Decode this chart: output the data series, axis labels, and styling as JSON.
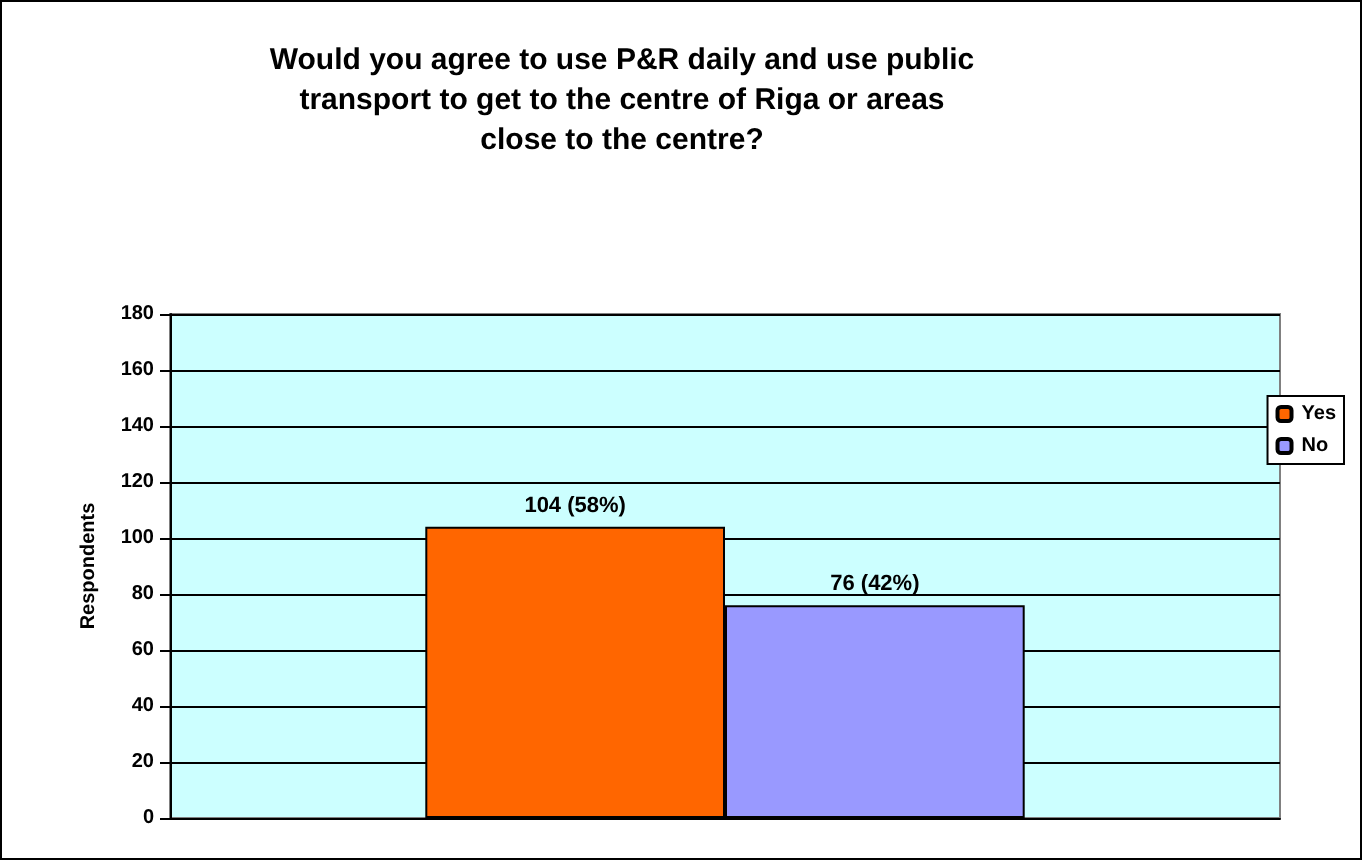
{
  "chart_data": {
    "type": "bar",
    "title": "Would you agree to use P&R daily and use public\ntransport to get to the centre of Riga or areas\nclose to the centre?",
    "ylabel": "Respondents",
    "categories": [
      null
    ],
    "series": [
      {
        "name": "Yes",
        "color": "#ff6600",
        "values": [
          104
        ],
        "value_labels": [
          "104 (58%)"
        ]
      },
      {
        "name": "No",
        "color": "#9999ff",
        "values": [
          76
        ],
        "value_labels": [
          "76 (42%)"
        ]
      }
    ],
    "ylim": [
      0,
      180
    ],
    "yticks": [
      0,
      20,
      40,
      60,
      80,
      100,
      120,
      140,
      160,
      180
    ],
    "grid": "y",
    "legend": "right"
  }
}
